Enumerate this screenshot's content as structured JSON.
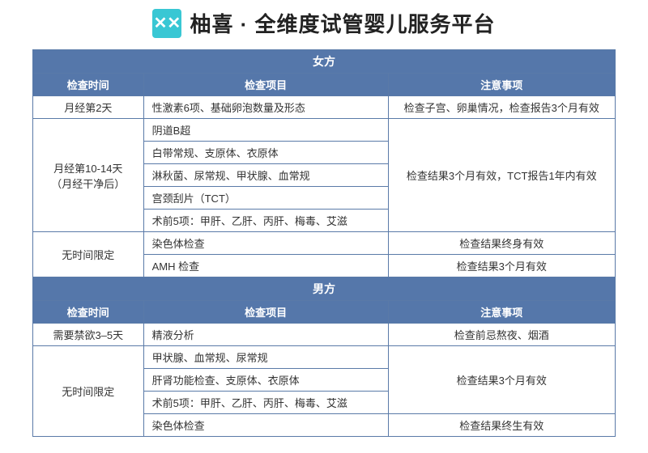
{
  "brand": {
    "logo_bg": "#39c7d4",
    "logo_glyph": "✕✕"
  },
  "title": "柚喜 · 全维度试管婴儿服务平台",
  "colors": {
    "header_bg": "#5577aa",
    "header_text": "#ffffff",
    "border": "#5a7aa8",
    "body_text": "#333333",
    "background": "#ffffff"
  },
  "typography": {
    "title_fontsize": 26,
    "header_fontsize": 14,
    "cell_fontsize": 13
  },
  "columns": {
    "time": "检查时间",
    "item": "检查项目",
    "note": "注意事项"
  },
  "female": {
    "section_label": "女方",
    "groups": [
      {
        "time": "月经第2天",
        "items": [
          "性激素6项、基础卵泡数量及形态"
        ],
        "note": "检查子宫、卵巢情况，检查报告3个月有效"
      },
      {
        "time": "月经第10-14天\n（月经干净后）",
        "items": [
          "阴道B超",
          "白带常规、支原体、衣原体",
          "淋秋菌、尿常规、甲状腺、血常规",
          "宫颈刮片（TCT）",
          "术前5项：甲肝、乙肝、丙肝、梅毒、艾滋"
        ],
        "note": "检查结果3个月有效，TCT报告1年内有效"
      },
      {
        "time": "无时间限定",
        "items": [
          "染色体检查",
          "AMH 检查"
        ],
        "note_per_item": [
          "检查结果终身有效",
          "检查结果3个月有效"
        ]
      }
    ]
  },
  "male": {
    "section_label": "男方",
    "groups": [
      {
        "time": "需要禁欲3–5天",
        "items": [
          "精液分析"
        ],
        "note": "检查前忌熬夜、烟酒"
      },
      {
        "time": "无时间限定",
        "items": [
          "甲状腺、血常规、尿常规",
          "肝肾功能检查、支原体、衣原体",
          "术前5项：甲肝、乙肝、丙肝、梅毒、艾滋",
          "染色体检查"
        ],
        "note_split": [
          {
            "rows": 3,
            "text": "检查结果3个月有效"
          },
          {
            "rows": 1,
            "text": "检查结果终生有效"
          }
        ]
      }
    ]
  }
}
